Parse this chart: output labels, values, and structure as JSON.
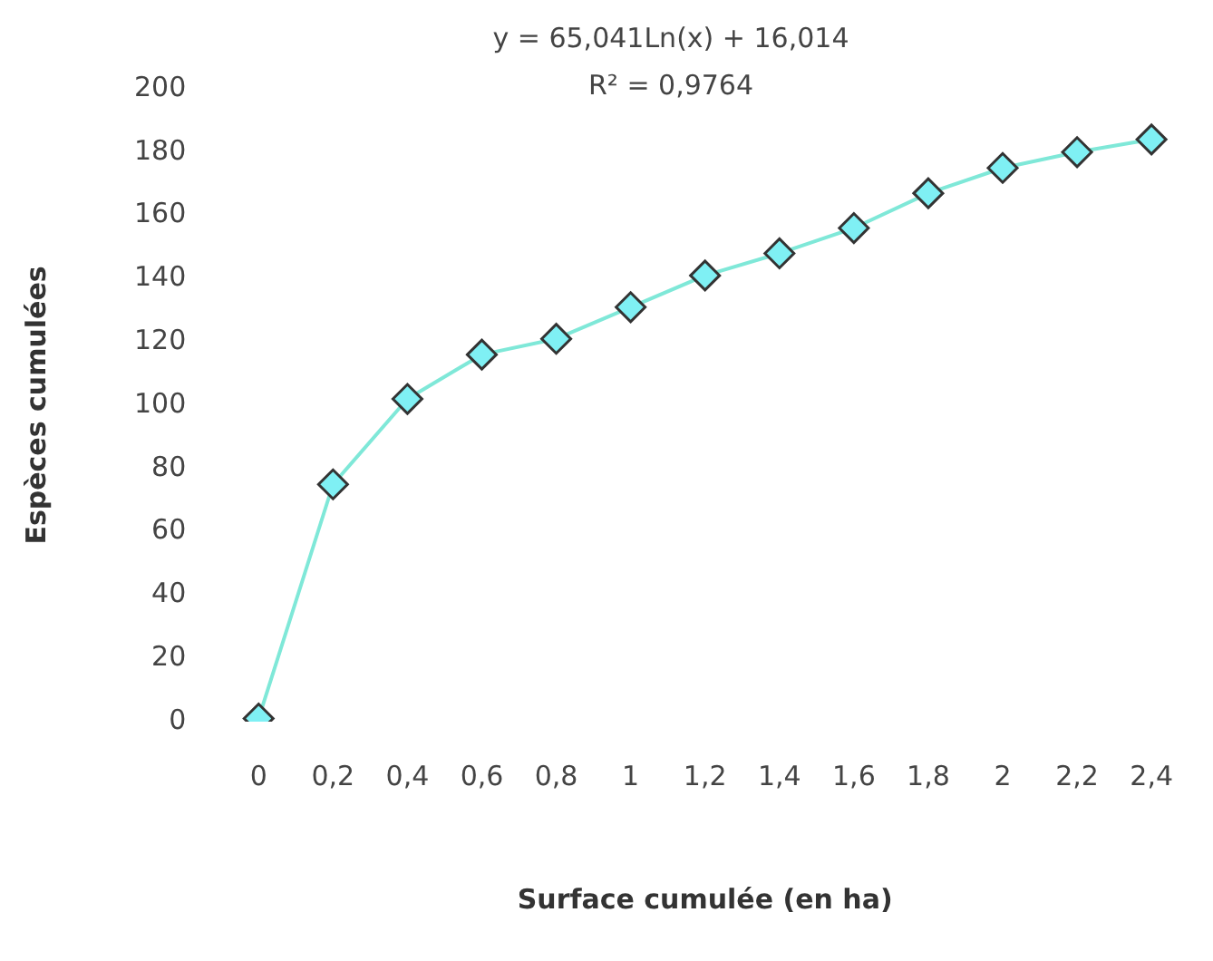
{
  "chart_data": {
    "type": "line",
    "xlabel": "Surface cumulée (en ha)",
    "ylabel": "Espèces cumulées",
    "categories": [
      "0",
      "0,2",
      "0,4",
      "0,6",
      "0,8",
      "1",
      "1,2",
      "1,4",
      "1,6",
      "1,8",
      "2",
      "2,2",
      "2,4"
    ],
    "series": [
      {
        "color": "#7fe8d8",
        "values": [
          1,
          75,
          102,
          116,
          121,
          131,
          141,
          148,
          156,
          167,
          175,
          180,
          184
        ]
      }
    ],
    "ylim": [
      0,
      200
    ],
    "yticks": [
      0,
      20,
      40,
      60,
      80,
      100,
      120,
      140,
      160,
      180,
      200
    ],
    "annotations": [
      "y = 65,041Ln(x) + 16,014",
      "R² = 0,9764"
    ],
    "grid": false,
    "legend": false,
    "marker": "diamond",
    "line_style": "solid"
  }
}
